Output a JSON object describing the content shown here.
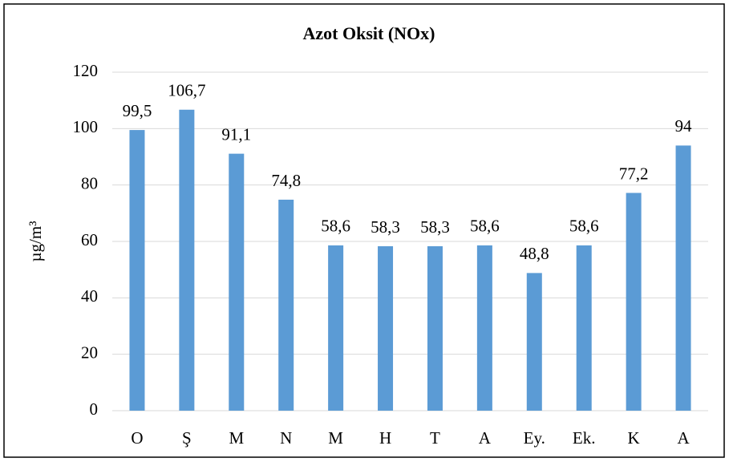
{
  "chart_data": {
    "type": "bar",
    "title": "Azot Oksit (NOx)",
    "y_label": "µg/m³",
    "categories": [
      "O",
      "Ş",
      "M",
      "N",
      "M",
      "H",
      "T",
      "A",
      "Ey.",
      "Ek.",
      "K",
      "A"
    ],
    "values": [
      99.5,
      106.7,
      91.1,
      74.8,
      58.6,
      58.3,
      58.3,
      58.6,
      48.8,
      58.6,
      77.2,
      94
    ],
    "value_labels": [
      "99,5",
      "106,7",
      "91,1",
      "74,8",
      "58,6",
      "58,3",
      "58,3",
      "58,6",
      "48,8",
      "58,6",
      "77,2",
      "94"
    ],
    "color": "#5b9bd5",
    "ylim": [
      0,
      120
    ],
    "yticks": [
      0,
      20,
      40,
      60,
      80,
      100,
      120
    ],
    "grid": true
  }
}
